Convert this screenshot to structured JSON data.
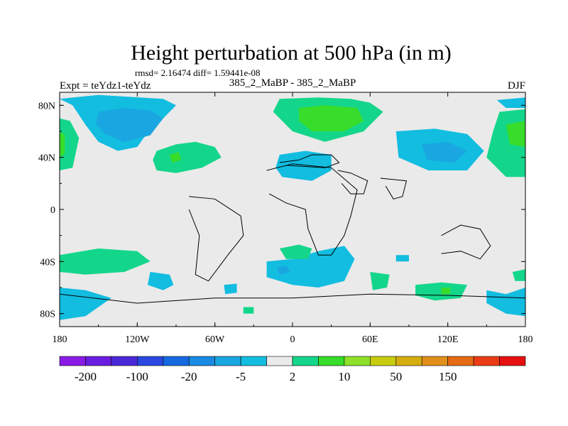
{
  "chart_data": {
    "type": "heatmap",
    "title": "Height perturbation at 500 hPa (in m)",
    "stats_text": "rmsd= 2.16474  diff= 1.59441e-08",
    "subtitle_center": "385_2_MaBP - 385_2_MaBP",
    "label_left": "Expt = teYdz1-teYdz",
    "label_right": "DJF",
    "lon_range": [
      -180,
      180
    ],
    "lat_range": [
      -90,
      90
    ],
    "x_ticks": [
      {
        "value": -180,
        "label": "180"
      },
      {
        "value": -120,
        "label": "120W"
      },
      {
        "value": -60,
        "label": "60W"
      },
      {
        "value": 0,
        "label": "0"
      },
      {
        "value": 60,
        "label": "60E"
      },
      {
        "value": 120,
        "label": "120E"
      },
      {
        "value": 180,
        "label": "180"
      }
    ],
    "y_ticks": [
      {
        "value": 80,
        "label": "80N"
      },
      {
        "value": 40,
        "label": "40N"
      },
      {
        "value": 0,
        "label": "0"
      },
      {
        "value": -40,
        "label": "40S"
      },
      {
        "value": -80,
        "label": "80S"
      }
    ],
    "colorbar": {
      "colors": [
        "#8a1be6",
        "#6a1de0",
        "#4a2ad8",
        "#2a48df",
        "#1668e0",
        "#1a8ae3",
        "#1aa6e0",
        "#12bde0",
        "#eaeaea",
        "#14d68a",
        "#38dc2a",
        "#8ee02a",
        "#c8cc10",
        "#d4ad10",
        "#e0901a",
        "#e56a12",
        "#ea3c14",
        "#e61010"
      ],
      "labels": [
        {
          "boundary": 1,
          "label": "-200"
        },
        {
          "boundary": 3,
          "label": "-100"
        },
        {
          "boundary": 5,
          "label": "-20"
        },
        {
          "boundary": 7,
          "label": "-5"
        },
        {
          "boundary": 9,
          "label": "2"
        },
        {
          "boundary": 11,
          "label": "10"
        },
        {
          "boundary": 13,
          "label": "50"
        },
        {
          "boundary": 15,
          "label": "150"
        }
      ]
    },
    "regions": [
      {
        "name": "nw-pacific-cyan",
        "level": 7,
        "pts": [
          [
            -180,
            85
          ],
          [
            -150,
            88
          ],
          [
            -100,
            85
          ],
          [
            -90,
            80
          ],
          [
            -100,
            70
          ],
          [
            -115,
            55
          ],
          [
            -120,
            48
          ],
          [
            -135,
            45
          ],
          [
            -150,
            52
          ],
          [
            -160,
            65
          ],
          [
            -170,
            80
          ]
        ]
      },
      {
        "name": "nw-pacific-blue",
        "level": 6,
        "pts": [
          [
            -150,
            75
          ],
          [
            -130,
            78
          ],
          [
            -110,
            76
          ],
          [
            -100,
            70
          ],
          [
            -110,
            57
          ],
          [
            -130,
            52
          ],
          [
            -145,
            58
          ],
          [
            -152,
            66
          ]
        ]
      },
      {
        "name": "n-pacific-green",
        "level": 9,
        "pts": [
          [
            -105,
            45
          ],
          [
            -90,
            50
          ],
          [
            -75,
            52
          ],
          [
            -60,
            48
          ],
          [
            -55,
            40
          ],
          [
            -70,
            32
          ],
          [
            -90,
            28
          ],
          [
            -105,
            30
          ],
          [
            -108,
            38
          ]
        ]
      },
      {
        "name": "n-pacific-green-core",
        "level": 10,
        "pts": [
          [
            -95,
            42
          ],
          [
            -88,
            44
          ],
          [
            -86,
            38
          ],
          [
            -93,
            36
          ]
        ]
      },
      {
        "name": "west-atlantic-green",
        "level": 9,
        "pts": [
          [
            -180,
            70
          ],
          [
            -172,
            68
          ],
          [
            -165,
            55
          ],
          [
            -170,
            32
          ],
          [
            -180,
            30
          ]
        ]
      },
      {
        "name": "west-atlantic-green-core",
        "level": 10,
        "pts": [
          [
            -180,
            60
          ],
          [
            -176,
            57
          ],
          [
            -176,
            43
          ],
          [
            -180,
            40
          ]
        ]
      },
      {
        "name": "n-europe-green",
        "level": 9,
        "pts": [
          [
            -10,
            85
          ],
          [
            20,
            86
          ],
          [
            45,
            85
          ],
          [
            60,
            82
          ],
          [
            70,
            75
          ],
          [
            55,
            60
          ],
          [
            25,
            52
          ],
          [
            0,
            60
          ],
          [
            -15,
            75
          ]
        ]
      },
      {
        "name": "n-europe-green-core",
        "level": 10,
        "pts": [
          [
            5,
            78
          ],
          [
            25,
            80
          ],
          [
            50,
            78
          ],
          [
            55,
            68
          ],
          [
            40,
            60
          ],
          [
            15,
            60
          ],
          [
            5,
            68
          ]
        ]
      },
      {
        "name": "n-america-green",
        "level": 9,
        "pts": [
          [
            160,
            75
          ],
          [
            180,
            77
          ],
          [
            180,
            25
          ],
          [
            165,
            25
          ],
          [
            150,
            40
          ],
          [
            155,
            60
          ]
        ]
      },
      {
        "name": "n-america-green-core",
        "level": 10,
        "pts": [
          [
            165,
            65
          ],
          [
            180,
            68
          ],
          [
            180,
            48
          ],
          [
            168,
            50
          ]
        ]
      },
      {
        "name": "siberia-cyan",
        "level": 7,
        "pts": [
          [
            80,
            60
          ],
          [
            110,
            62
          ],
          [
            135,
            58
          ],
          [
            148,
            45
          ],
          [
            135,
            30
          ],
          [
            105,
            30
          ],
          [
            82,
            40
          ]
        ]
      },
      {
        "name": "siberia-blue",
        "level": 6,
        "pts": [
          [
            100,
            50
          ],
          [
            120,
            52
          ],
          [
            135,
            45
          ],
          [
            125,
            36
          ],
          [
            104,
            38
          ]
        ]
      },
      {
        "name": "arctic-cyan-right",
        "level": 7,
        "pts": [
          [
            158,
            84
          ],
          [
            180,
            86
          ],
          [
            180,
            78
          ],
          [
            165,
            78
          ]
        ]
      },
      {
        "name": "mediterranean-cyan",
        "level": 7,
        "pts": [
          [
            -10,
            42
          ],
          [
            10,
            45
          ],
          [
            30,
            42
          ],
          [
            30,
            30
          ],
          [
            15,
            22
          ],
          [
            -8,
            25
          ],
          [
            -13,
            32
          ]
        ]
      },
      {
        "name": "sw-pacific-green",
        "level": 9,
        "pts": [
          [
            -180,
            -35
          ],
          [
            -150,
            -30
          ],
          [
            -120,
            -32
          ],
          [
            -110,
            -40
          ],
          [
            -130,
            -48
          ],
          [
            -160,
            -50
          ],
          [
            -180,
            -48
          ]
        ]
      },
      {
        "name": "s-pacific-cyan",
        "level": 7,
        "pts": [
          [
            -180,
            -60
          ],
          [
            -160,
            -62
          ],
          [
            -140,
            -68
          ],
          [
            -160,
            -82
          ],
          [
            -180,
            -85
          ]
        ]
      },
      {
        "name": "s-atlantic-cyan",
        "level": 7,
        "pts": [
          [
            -110,
            -48
          ],
          [
            -95,
            -50
          ],
          [
            -92,
            -58
          ],
          [
            -100,
            -62
          ],
          [
            -112,
            -58
          ]
        ]
      },
      {
        "name": "s-america-cyan",
        "level": 7,
        "pts": [
          [
            -53,
            -58
          ],
          [
            -43,
            -57
          ],
          [
            -43,
            -64
          ],
          [
            -52,
            -65
          ]
        ]
      },
      {
        "name": "south-green",
        "level": 9,
        "pts": [
          [
            -38,
            -75
          ],
          [
            -30,
            -75
          ],
          [
            -30,
            -80
          ],
          [
            -38,
            -80
          ]
        ]
      },
      {
        "name": "s-africa-cyan",
        "level": 7,
        "pts": [
          [
            -20,
            -40
          ],
          [
            0,
            -38
          ],
          [
            20,
            -32
          ],
          [
            40,
            -28
          ],
          [
            48,
            -38
          ],
          [
            40,
            -55
          ],
          [
            20,
            -60
          ],
          [
            0,
            -58
          ],
          [
            -20,
            -52
          ]
        ]
      },
      {
        "name": "s-africa-blue",
        "level": 6,
        "pts": [
          [
            -12,
            -45
          ],
          [
            -5,
            -43
          ],
          [
            -2,
            -48
          ],
          [
            -10,
            -50
          ]
        ]
      },
      {
        "name": "s-africa-green",
        "level": 9,
        "pts": [
          [
            -10,
            -30
          ],
          [
            5,
            -27
          ],
          [
            15,
            -30
          ],
          [
            12,
            -38
          ],
          [
            -5,
            -38
          ]
        ]
      },
      {
        "name": "s-indian-green",
        "level": 9,
        "pts": [
          [
            60,
            -48
          ],
          [
            75,
            -50
          ],
          [
            73,
            -60
          ],
          [
            62,
            -62
          ]
        ]
      },
      {
        "name": "australia-cyan",
        "level": 7,
        "pts": [
          [
            80,
            -35
          ],
          [
            90,
            -35
          ],
          [
            90,
            -40
          ],
          [
            80,
            -40
          ]
        ]
      },
      {
        "name": "s-indian-green-2",
        "level": 9,
        "pts": [
          [
            95,
            -58
          ],
          [
            115,
            -56
          ],
          [
            135,
            -58
          ],
          [
            130,
            -68
          ],
          [
            110,
            -70
          ],
          [
            95,
            -66
          ]
        ]
      },
      {
        "name": "s-indian-green-core",
        "level": 10,
        "pts": [
          [
            115,
            -60
          ],
          [
            122,
            -60
          ],
          [
            122,
            -65
          ],
          [
            115,
            -65
          ]
        ]
      },
      {
        "name": "se-pacific-cyan",
        "level": 7,
        "pts": [
          [
            150,
            -62
          ],
          [
            165,
            -65
          ],
          [
            180,
            -60
          ],
          [
            180,
            -82
          ],
          [
            165,
            -80
          ],
          [
            150,
            -72
          ]
        ]
      },
      {
        "name": "far-right-green",
        "level": 9,
        "pts": [
          [
            170,
            -48
          ],
          [
            180,
            -46
          ],
          [
            180,
            -55
          ],
          [
            172,
            -55
          ]
        ]
      }
    ],
    "coastlines": [
      {
        "name": "africa",
        "pts": [
          [
            -20,
            30
          ],
          [
            0,
            35
          ],
          [
            30,
            32
          ],
          [
            50,
            15
          ],
          [
            45,
            -5
          ],
          [
            40,
            -20
          ],
          [
            30,
            -35
          ],
          [
            20,
            -35
          ],
          [
            12,
            -15
          ],
          [
            10,
            0
          ],
          [
            -5,
            5
          ],
          [
            -18,
            12
          ]
        ]
      },
      {
        "name": "south-america",
        "pts": [
          [
            -80,
            10
          ],
          [
            -60,
            8
          ],
          [
            -40,
            -5
          ],
          [
            -38,
            -20
          ],
          [
            -50,
            -35
          ],
          [
            -65,
            -55
          ],
          [
            -75,
            -50
          ],
          [
            -72,
            -20
          ],
          [
            -80,
            0
          ]
        ]
      },
      {
        "name": "australia",
        "pts": [
          [
            115,
            -20
          ],
          [
            130,
            -12
          ],
          [
            145,
            -15
          ],
          [
            153,
            -28
          ],
          [
            145,
            -38
          ],
          [
            130,
            -32
          ],
          [
            115,
            -34
          ]
        ]
      },
      {
        "name": "mediterranean",
        "pts": [
          [
            -10,
            36
          ],
          [
            5,
            38
          ],
          [
            15,
            42
          ],
          [
            30,
            42
          ],
          [
            36,
            36
          ],
          [
            25,
            32
          ],
          [
            10,
            33
          ],
          [
            -5,
            34
          ]
        ]
      },
      {
        "name": "arabia",
        "pts": [
          [
            35,
            30
          ],
          [
            45,
            28
          ],
          [
            58,
            22
          ],
          [
            55,
            12
          ],
          [
            45,
            12
          ],
          [
            38,
            20
          ]
        ]
      },
      {
        "name": "india",
        "pts": [
          [
            68,
            24
          ],
          [
            88,
            22
          ],
          [
            85,
            10
          ],
          [
            78,
            8
          ],
          [
            72,
            18
          ]
        ]
      },
      {
        "name": "antarctica",
        "pts": [
          [
            -180,
            -65
          ],
          [
            -120,
            -72
          ],
          [
            -60,
            -68
          ],
          [
            0,
            -68
          ],
          [
            60,
            -65
          ],
          [
            120,
            -66
          ],
          [
            180,
            -68
          ]
        ]
      }
    ]
  }
}
